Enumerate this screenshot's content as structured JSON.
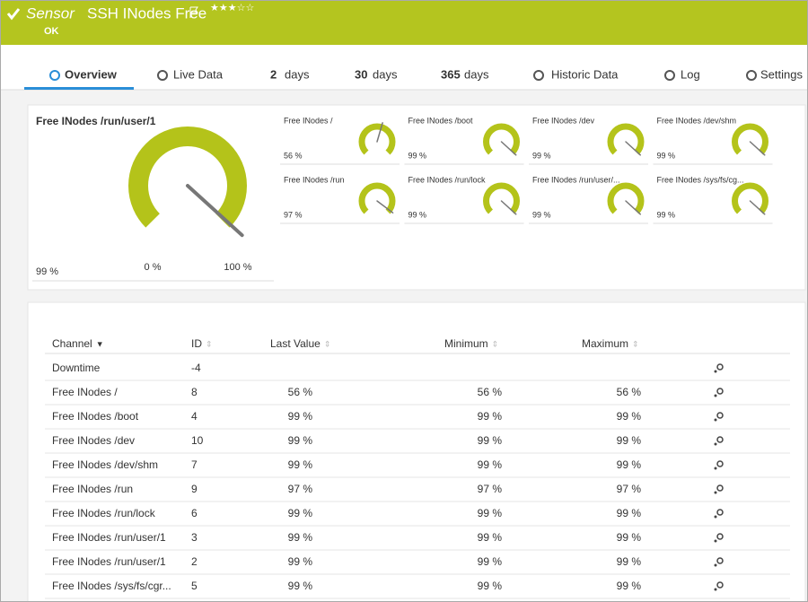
{
  "header": {
    "prefix": "Sensor",
    "title": "SSH INodes Free",
    "status": "OK"
  },
  "tabs": [
    {
      "label": "Overview"
    },
    {
      "label": "Live Data"
    },
    {
      "number": "2",
      "label": "days"
    },
    {
      "number": "30",
      "label": "days"
    },
    {
      "number": "365",
      "label": "days"
    },
    {
      "label": "Historic Data"
    },
    {
      "label": "Log"
    },
    {
      "label": "Settings"
    }
  ],
  "main_gauge": {
    "title": "Free INodes /run/user/1",
    "value": 99,
    "value_label": "99 %",
    "range": [
      {
        "value": 0,
        "label": "0 %"
      },
      {
        "value": 100,
        "label": "100 %"
      }
    ]
  },
  "gauges": [
    {
      "title": "Free INodes /",
      "value": 56,
      "value_label": "56 %"
    },
    {
      "title": "Free INodes /boot",
      "value": 99,
      "value_label": "99 %"
    },
    {
      "title": "Free INodes /dev",
      "value": 99,
      "value_label": "99 %"
    },
    {
      "title": "Free INodes /dev/shm",
      "value": 99,
      "value_label": "99 %"
    },
    {
      "title": "Free INodes /run",
      "value": 97,
      "value_label": "97 %"
    },
    {
      "title": "Free INodes /run/lock",
      "value": 99,
      "value_label": "99 %"
    },
    {
      "title": "Free INodes /run/user/...",
      "value": 99,
      "value_label": "99 %"
    },
    {
      "title": "Free INodes /sys/fs/cg...",
      "value": 99,
      "value_label": "99 %"
    }
  ],
  "table": {
    "columns": [
      "Channel",
      "ID",
      "Last Value",
      "Minimum",
      "Maximum"
    ],
    "rows": [
      [
        "Downtime",
        "-4"
      ],
      [
        "Free INodes /",
        "8",
        "56 %",
        "56 %",
        "56 %"
      ],
      [
        "Free INodes /boot",
        "4",
        "99 %",
        "99 %",
        "99 %"
      ],
      [
        "Free INodes /dev",
        "10",
        "99 %",
        "99 %",
        "99 %"
      ],
      [
        "Free INodes /dev/shm",
        "7",
        "99 %",
        "99 %",
        "99 %"
      ],
      [
        "Free INodes /run",
        "9",
        "97 %",
        "97 %",
        "97 %"
      ],
      [
        "Free INodes /run/lock",
        "6",
        "99 %",
        "99 %",
        "99 %"
      ],
      [
        "Free INodes /run/user/1",
        "3",
        "99 %",
        "99 %",
        "99 %"
      ],
      [
        "Free INodes /run/user/1",
        "2",
        "99 %",
        "99 %",
        "99 %"
      ],
      [
        "Free INodes /sys/fs/cgr...",
        "5",
        "99 %",
        "99 %",
        "99 %"
      ]
    ]
  }
}
